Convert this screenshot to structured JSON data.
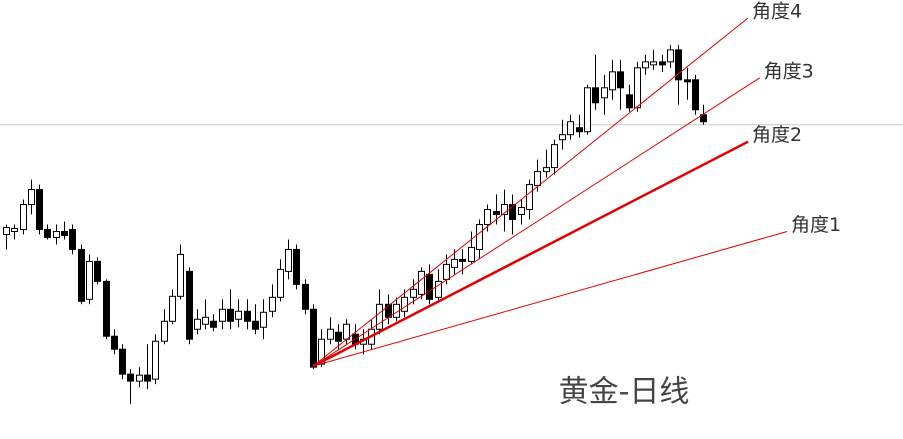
{
  "chart_data": {
    "type": "candlestick",
    "title": "黄金-日线",
    "xlim": [
      -0.72,
      108.07
    ],
    "ylim": [
      0,
      440
    ],
    "up_color": "#ffffff",
    "down_color": "#000000",
    "wick_color": "#000000",
    "price_line": {
      "value": 315,
      "color": "#c8c8c8"
    },
    "candles": [
      [
        205,
        215,
        190,
        212
      ],
      [
        208,
        215,
        200,
        211
      ],
      [
        210,
        240,
        205,
        235
      ],
      [
        235,
        260,
        225,
        250
      ],
      [
        250,
        255,
        205,
        210
      ],
      [
        210,
        215,
        200,
        202
      ],
      [
        202,
        215,
        195,
        208
      ],
      [
        208,
        218,
        200,
        204
      ],
      [
        210,
        215,
        185,
        190
      ],
      [
        190,
        195,
        135,
        138
      ],
      [
        140,
        185,
        135,
        178
      ],
      [
        178,
        182,
        155,
        158
      ],
      [
        158,
        160,
        100,
        103
      ],
      [
        103,
        110,
        85,
        90
      ],
      [
        90,
        95,
        60,
        65
      ],
      [
        65,
        70,
        35,
        58
      ],
      [
        58,
        72,
        52,
        64
      ],
      [
        64,
        95,
        50,
        58
      ],
      [
        60,
        105,
        55,
        98
      ],
      [
        98,
        130,
        95,
        118
      ],
      [
        118,
        150,
        115,
        143
      ],
      [
        143,
        195,
        140,
        185
      ],
      [
        168,
        172,
        95,
        100
      ],
      [
        110,
        130,
        105,
        120
      ],
      [
        115,
        140,
        110,
        122
      ],
      [
        118,
        125,
        108,
        112
      ],
      [
        118,
        140,
        110,
        130
      ],
      [
        130,
        150,
        110,
        118
      ],
      [
        120,
        140,
        112,
        128
      ],
      [
        128,
        140,
        110,
        118
      ],
      [
        118,
        135,
        105,
        110
      ],
      [
        112,
        140,
        100,
        127
      ],
      [
        128,
        155,
        122,
        142
      ],
      [
        142,
        180,
        138,
        170
      ],
      [
        168,
        200,
        160,
        190
      ],
      [
        190,
        195,
        150,
        155
      ],
      [
        155,
        160,
        125,
        130
      ],
      [
        130,
        135,
        70,
        72
      ],
      [
        75,
        110,
        72,
        100
      ],
      [
        100,
        122,
        95,
        110
      ],
      [
        107,
        115,
        90,
        98
      ],
      [
        100,
        120,
        95,
        115
      ],
      [
        105,
        115,
        90,
        95
      ],
      [
        95,
        110,
        85,
        100
      ],
      [
        95,
        120,
        90,
        110
      ],
      [
        110,
        150,
        105,
        135
      ],
      [
        135,
        145,
        115,
        122
      ],
      [
        122,
        142,
        118,
        135
      ],
      [
        128,
        150,
        122,
        142
      ],
      [
        142,
        160,
        135,
        150
      ],
      [
        145,
        172,
        140,
        168
      ],
      [
        165,
        175,
        135,
        140
      ],
      [
        142,
        170,
        138,
        158
      ],
      [
        160,
        185,
        155,
        175
      ],
      [
        172,
        190,
        165,
        180
      ],
      [
        180,
        190,
        165,
        178
      ],
      [
        178,
        208,
        175,
        192
      ],
      [
        190,
        220,
        180,
        215
      ],
      [
        215,
        235,
        208,
        230
      ],
      [
        228,
        245,
        215,
        225
      ],
      [
        225,
        250,
        208,
        235
      ],
      [
        235,
        245,
        205,
        220
      ],
      [
        225,
        240,
        215,
        232
      ],
      [
        230,
        260,
        220,
        255
      ],
      [
        254,
        280,
        248,
        268
      ],
      [
        268,
        290,
        262,
        272
      ],
      [
        272,
        300,
        265,
        295
      ],
      [
        300,
        320,
        290,
        305
      ],
      [
        305,
        325,
        300,
        318
      ],
      [
        312,
        325,
        302,
        308
      ],
      [
        308,
        355,
        305,
        352
      ],
      [
        352,
        385,
        330,
        337
      ],
      [
        342,
        365,
        325,
        352
      ],
      [
        350,
        380,
        340,
        368
      ],
      [
        368,
        380,
        330,
        352
      ],
      [
        345,
        355,
        328,
        332
      ],
      [
        332,
        378,
        328,
        372
      ],
      [
        372,
        385,
        365,
        378
      ],
      [
        375,
        390,
        370,
        378
      ],
      [
        378,
        385,
        368,
        375
      ],
      [
        378,
        395,
        372,
        390
      ],
      [
        390,
        395,
        335,
        360
      ],
      [
        360,
        372,
        340,
        358
      ],
      [
        360,
        365,
        325,
        330
      ],
      [
        325,
        335,
        315,
        318
      ]
    ],
    "fan_lines": [
      {
        "label": "角度1",
        "start": [
          37,
          73
        ],
        "end": [
          94.1,
          208
        ],
        "color": "#e00000",
        "linewidth": 1
      },
      {
        "label": "角度2",
        "start": [
          37,
          73
        ],
        "end": [
          89.4,
          298
        ],
        "color": "#e00000",
        "linewidth": 2.5
      },
      {
        "label": "角度3",
        "start": [
          37,
          73
        ],
        "end": [
          90.8,
          362
        ],
        "color": "#e00000",
        "linewidth": 1
      },
      {
        "label": "角度4",
        "start": [
          37,
          73
        ],
        "end": [
          89.4,
          422
        ],
        "color": "#e00000",
        "linewidth": 1
      }
    ]
  }
}
